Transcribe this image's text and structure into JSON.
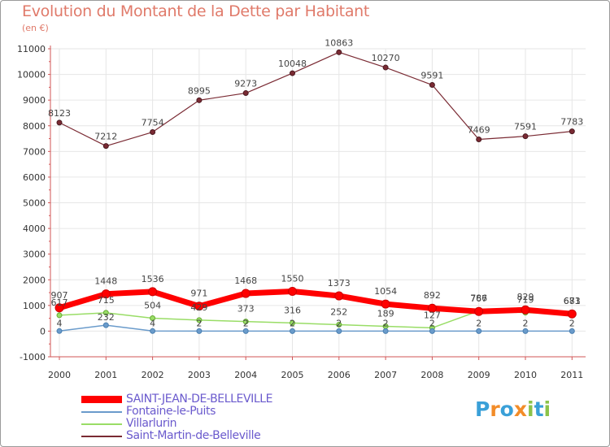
{
  "title": "Evolution du Montant de la Dette par Habitant",
  "subtitle": "(en €)",
  "logo": {
    "letters": [
      "P",
      "r",
      "o",
      "x",
      "i",
      "t",
      "i"
    ],
    "colors": [
      "#3aa0d8",
      "#f28c28",
      "#3aa0d8",
      "#f28c28",
      "#8bc34a",
      "#3aa0d8",
      "#8bc34a"
    ]
  },
  "colors": {
    "saint_jean": "#ff0000",
    "fontaine": "#6a9bcb",
    "villarlurin": "#99dd66",
    "saint_martin": "#7a2a33",
    "axis": "#d25555",
    "grid": "#e6e6e6"
  },
  "chart_data": {
    "type": "line",
    "x": [
      "2000",
      "2001",
      "2002",
      "2003",
      "2004",
      "2005",
      "2006",
      "2007",
      "2008",
      "2009",
      "2010",
      "2011"
    ],
    "ylim": [
      -1000,
      11000
    ],
    "yticks": [
      "-1000",
      "0",
      "1000",
      "2000",
      "3000",
      "4000",
      "5000",
      "6000",
      "7000",
      "8000",
      "9000",
      "10000",
      "11000"
    ],
    "grid": true,
    "legend_position": "bottom-left",
    "series": [
      {
        "name": "SAINT-JEAN-DE-BELLEVILLE",
        "key": "saint_jean",
        "values": [
          907,
          1448,
          1536,
          971,
          1468,
          1550,
          1373,
          1054,
          892,
          767,
          829,
          671
        ],
        "labels": [
          "907",
          "1448",
          "1536",
          "971",
          "1468",
          "1550",
          "1373",
          "1054",
          "892",
          "767",
          "829",
          "671"
        ]
      },
      {
        "name": "Fontaine-le-Puits",
        "key": "fontaine",
        "values": [
          4,
          232,
          4,
          2,
          2,
          2,
          2,
          2,
          2,
          2,
          2,
          2
        ],
        "labels": [
          "4",
          "232",
          "4",
          "2",
          "2",
          "2",
          "2",
          "2",
          "2",
          "2",
          "2",
          "2"
        ]
      },
      {
        "name": "Villarlurin",
        "key": "villarlurin",
        "values": [
          617,
          715,
          504,
          429,
          373,
          316,
          252,
          189,
          127,
          786,
          719,
          683
        ],
        "labels": [
          "617",
          "715",
          "504",
          "429",
          "373",
          "316",
          "252",
          "189",
          "127",
          "786",
          "719",
          "683"
        ]
      },
      {
        "name": "Saint-Martin-de-Belleville",
        "key": "saint_martin",
        "values": [
          8123,
          7212,
          7754,
          8995,
          9273,
          10048,
          10863,
          10270,
          9591,
          7469,
          7591,
          7783
        ],
        "labels": [
          "8123",
          "7212",
          "7754",
          "8995",
          "9273",
          "10048",
          "10863",
          "10270",
          "9591",
          "7469",
          "7591",
          "7783"
        ]
      }
    ]
  }
}
